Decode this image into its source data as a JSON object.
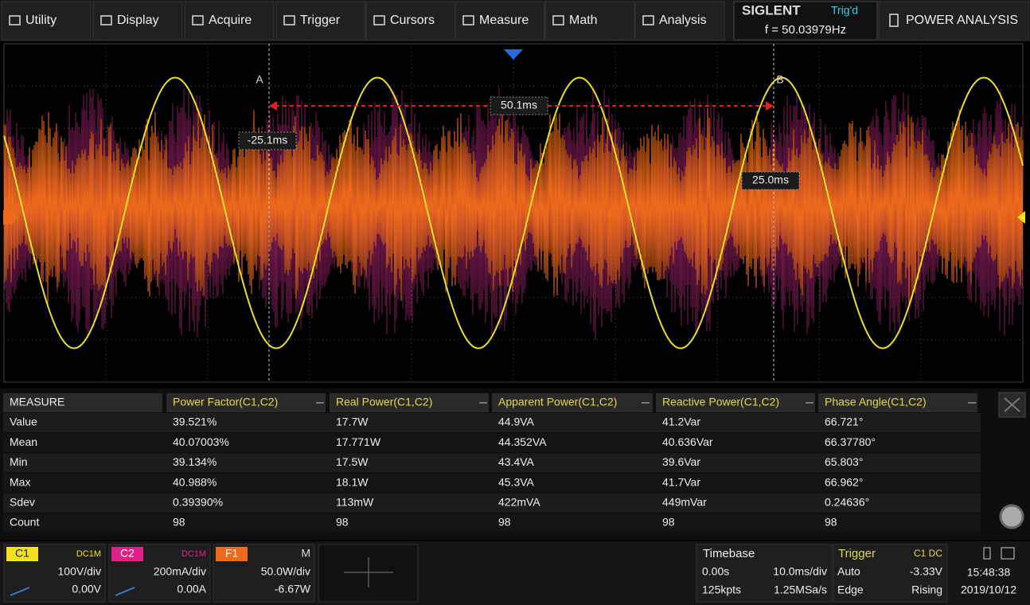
{
  "menu": [
    "Utility",
    "Display",
    "Acquire",
    "Trigger",
    "Cursors",
    "Measure",
    "Math",
    "Analysis"
  ],
  "status": {
    "brand": "SIGLENT",
    "trigger_state": "Trig'd",
    "frequency": "f = 50.03979Hz",
    "mode": "POWER ANALYSIS"
  },
  "cursors": {
    "a_label": "A",
    "b_label": "B",
    "delta": "50.1ms",
    "a_time": "-25.1ms",
    "b_time": "25.0ms"
  },
  "measure": {
    "header": [
      "MEASURE",
      "Power Factor(C1,C2)",
      "Real Power(C1,C2)",
      "Apparent Power(C1,C2)",
      "Reactive Power(C1,C2)",
      "Phase Angle(C1,C2)"
    ],
    "rows": [
      [
        "Value",
        "39.521%",
        "17.7W",
        "44.9VA",
        "41.2Var",
        "66.721°"
      ],
      [
        "Mean",
        "40.07003%",
        "17.771W",
        "44.352VA",
        "40.636Var",
        "66.37780°"
      ],
      [
        "Min",
        "39.134%",
        "17.5W",
        "43.4VA",
        "39.6Var",
        "65.803°"
      ],
      [
        "Max",
        "40.988%",
        "18.1W",
        "45.3VA",
        "41.7Var",
        "66.962°"
      ],
      [
        "Sdev",
        "0.39390%",
        "113mW",
        "422mVA",
        "449mVar",
        "0.24636°"
      ],
      [
        "Count",
        "98",
        "98",
        "98",
        "98",
        "98"
      ]
    ]
  },
  "channels": [
    {
      "name": "C1",
      "coupling": "DC1M",
      "scale": "100V/div",
      "offset": "0.00V"
    },
    {
      "name": "C2",
      "coupling": "DC1M",
      "scale": "200mA/div",
      "offset": "0.00A"
    },
    {
      "name": "F1",
      "coupling": "M",
      "scale": "50.0W/div",
      "offset": "-6.67W"
    }
  ],
  "timebase": {
    "title": "Timebase",
    "delay": "0.00s",
    "scale": "10.0ms/div",
    "points": "125kpts",
    "rate": "1.25MSa/s"
  },
  "trigger": {
    "title": "Trigger",
    "source": "C1 DC",
    "mode": "Auto",
    "level": "-3.33V",
    "type": "Edge",
    "slope": "Rising"
  },
  "clock": {
    "time": "15:48:38",
    "date": "2019/10/12"
  }
}
